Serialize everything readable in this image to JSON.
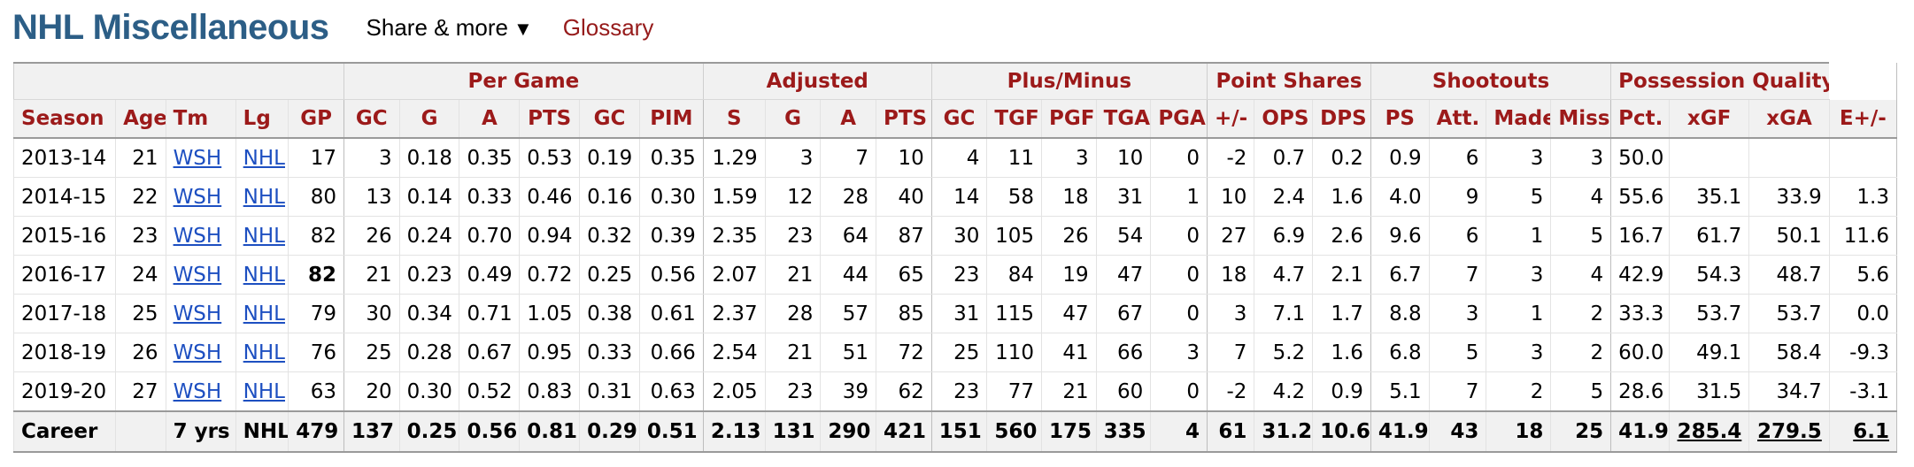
{
  "header": {
    "title": "NHL Miscellaneous",
    "share_label": "Share & more",
    "share_caret": "▼",
    "glossary_label": "Glossary"
  },
  "table": {
    "groups": [
      {
        "label": "",
        "span": 5
      },
      {
        "label": "Per Game",
        "span": 6
      },
      {
        "label": "Adjusted",
        "span": 4
      },
      {
        "label": "Plus/Minus",
        "span": 5
      },
      {
        "label": "Point Shares",
        "span": 3
      },
      {
        "label": "Shootouts",
        "span": 4
      },
      {
        "label": "Possession Quality",
        "span": 3
      }
    ],
    "columns": [
      "Season",
      "Age",
      "Tm",
      "Lg",
      "GP",
      "GC",
      "G",
      "A",
      "PTS",
      "GC",
      "PIM",
      "S",
      "G",
      "A",
      "PTS",
      "GC",
      "TGF",
      "PGF",
      "TGA",
      "PGA",
      "+/-",
      "OPS",
      "DPS",
      "PS",
      "Att.",
      "Made",
      "Miss",
      "Pct.",
      "xGF",
      "xGA",
      "E+/-"
    ],
    "rows": [
      [
        "2013-14",
        "21",
        "WSH",
        "NHL",
        "17",
        "3",
        "0.18",
        "0.35",
        "0.53",
        "0.19",
        "0.35",
        "1.29",
        "3",
        "7",
        "10",
        "4",
        "11",
        "3",
        "10",
        "0",
        "-2",
        "0.7",
        "0.2",
        "0.9",
        "6",
        "3",
        "3",
        "50.0",
        "",
        "",
        ""
      ],
      [
        "2014-15",
        "22",
        "WSH",
        "NHL",
        "80",
        "13",
        "0.14",
        "0.33",
        "0.46",
        "0.16",
        "0.30",
        "1.59",
        "12",
        "28",
        "40",
        "14",
        "58",
        "18",
        "31",
        "1",
        "10",
        "2.4",
        "1.6",
        "4.0",
        "9",
        "5",
        "4",
        "55.6",
        "35.1",
        "33.9",
        "1.3"
      ],
      [
        "2015-16",
        "23",
        "WSH",
        "NHL",
        "82",
        "26",
        "0.24",
        "0.70",
        "0.94",
        "0.32",
        "0.39",
        "2.35",
        "23",
        "64",
        "87",
        "30",
        "105",
        "26",
        "54",
        "0",
        "27",
        "6.9",
        "2.6",
        "9.6",
        "6",
        "1",
        "5",
        "16.7",
        "61.7",
        "50.1",
        "11.6"
      ],
      [
        "2016-17",
        "24",
        "WSH",
        "NHL",
        "82",
        "21",
        "0.23",
        "0.49",
        "0.72",
        "0.25",
        "0.56",
        "2.07",
        "21",
        "44",
        "65",
        "23",
        "84",
        "19",
        "47",
        "0",
        "18",
        "4.7",
        "2.1",
        "6.7",
        "7",
        "3",
        "4",
        "42.9",
        "54.3",
        "48.7",
        "5.6"
      ],
      [
        "2017-18",
        "25",
        "WSH",
        "NHL",
        "79",
        "30",
        "0.34",
        "0.71",
        "1.05",
        "0.38",
        "0.61",
        "2.37",
        "28",
        "57",
        "85",
        "31",
        "115",
        "47",
        "67",
        "0",
        "3",
        "7.1",
        "1.7",
        "8.8",
        "3",
        "1",
        "2",
        "33.3",
        "53.7",
        "53.7",
        "0.0"
      ],
      [
        "2018-19",
        "26",
        "WSH",
        "NHL",
        "76",
        "25",
        "0.28",
        "0.67",
        "0.95",
        "0.33",
        "0.66",
        "2.54",
        "21",
        "51",
        "72",
        "25",
        "110",
        "41",
        "66",
        "3",
        "7",
        "5.2",
        "1.6",
        "6.8",
        "5",
        "3",
        "2",
        "60.0",
        "49.1",
        "58.4",
        "-9.3"
      ],
      [
        "2019-20",
        "27",
        "WSH",
        "NHL",
        "63",
        "20",
        "0.30",
        "0.52",
        "0.83",
        "0.31",
        "0.63",
        "2.05",
        "23",
        "39",
        "62",
        "23",
        "77",
        "21",
        "60",
        "0",
        "-2",
        "4.2",
        "0.9",
        "5.1",
        "7",
        "2",
        "5",
        "28.6",
        "31.5",
        "34.7",
        "-3.1"
      ]
    ],
    "bold_cells": [
      [
        3,
        4
      ]
    ],
    "career": [
      "Career",
      "",
      "7 yrs",
      "NHL",
      "479",
      "137",
      "0.25",
      "0.56",
      "0.81",
      "0.29",
      "0.51",
      "2.13",
      "131",
      "290",
      "421",
      "151",
      "560",
      "175",
      "335",
      "4",
      "61",
      "31.2",
      "10.6",
      "41.9",
      "43",
      "18",
      "25",
      "41.9",
      "285.4",
      "279.5",
      "6.1"
    ],
    "career_underlined": [
      28,
      29,
      30
    ]
  }
}
